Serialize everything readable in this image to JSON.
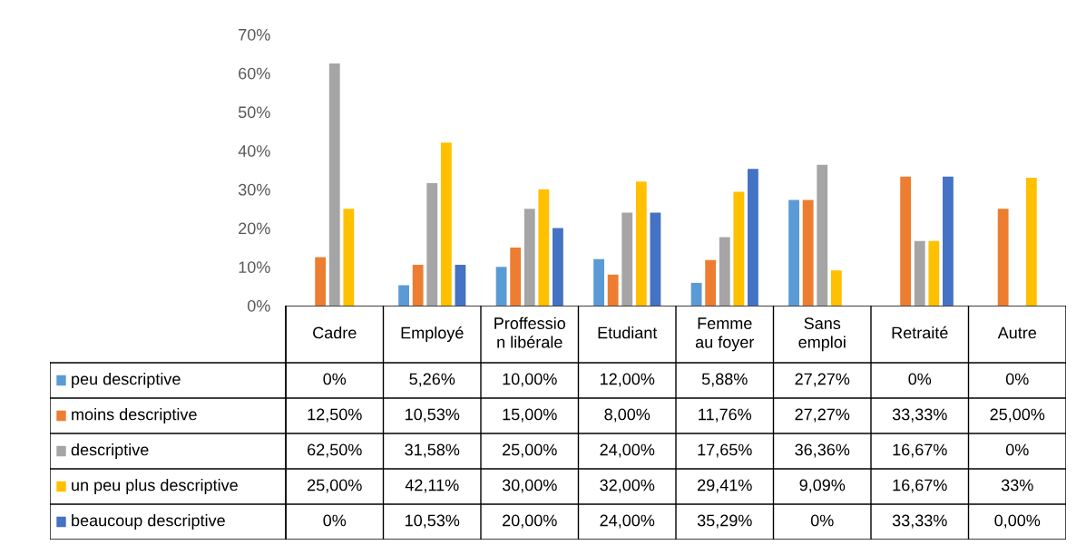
{
  "chart_data": {
    "type": "bar",
    "categories": [
      "Cadre",
      "Employé",
      "Proffessio\nn libérale",
      "Etudiant",
      "Femme\nau foyer",
      "Sans\nemploi",
      "Retraité",
      "Autre"
    ],
    "series": [
      {
        "name": "peu descriptive",
        "color": "#5b9bd5",
        "values": [
          0,
          5.26,
          10.0,
          12.0,
          5.88,
          27.27,
          0,
          0
        ],
        "value_labels": [
          "0%",
          "5,26%",
          "10,00%",
          "12,00%",
          "5,88%",
          "27,27%",
          "0%",
          "0%"
        ]
      },
      {
        "name": "moins descriptive",
        "color": "#ed7d31",
        "values": [
          12.5,
          10.53,
          15.0,
          8.0,
          11.76,
          27.27,
          33.33,
          25.0
        ],
        "value_labels": [
          "12,50%",
          "10,53%",
          "15,00%",
          "8,00%",
          "11,76%",
          "27,27%",
          "33,33%",
          "25,00%"
        ]
      },
      {
        "name": "descriptive",
        "color": "#a5a5a5",
        "values": [
          62.5,
          31.58,
          25.0,
          24.0,
          17.65,
          36.36,
          16.67,
          0
        ],
        "value_labels": [
          "62,50%",
          "31,58%",
          "25,00%",
          "24,00%",
          "17,65%",
          "36,36%",
          "16,67%",
          "0%"
        ]
      },
      {
        "name": "un peu plus descriptive",
        "color": "#ffc000",
        "values": [
          25.0,
          42.11,
          30.0,
          32.0,
          29.41,
          9.09,
          16.67,
          33
        ],
        "value_labels": [
          "25,00%",
          "42,11%",
          "30,00%",
          "32,00%",
          "29,41%",
          "9,09%",
          "16,67%",
          "33%"
        ]
      },
      {
        "name": "beaucoup descriptive",
        "color": "#4472c4",
        "values": [
          0,
          10.53,
          20.0,
          24.0,
          35.29,
          0,
          33.33,
          0.0
        ],
        "value_labels": [
          "0%",
          "10,53%",
          "20,00%",
          "24,00%",
          "35,29%",
          "0%",
          "33,33%",
          "0,00%"
        ]
      }
    ],
    "ylim": [
      0,
      70
    ],
    "yticks": [
      {
        "value": 0,
        "label": "0%"
      },
      {
        "value": 10,
        "label": "10%"
      },
      {
        "value": 20,
        "label": "20%"
      },
      {
        "value": 30,
        "label": "30%"
      },
      {
        "value": 40,
        "label": "40%"
      },
      {
        "value": 50,
        "label": "50%"
      },
      {
        "value": 60,
        "label": "60%"
      },
      {
        "value": 70,
        "label": "70%"
      }
    ],
    "grid": false,
    "legend": "bottom"
  }
}
